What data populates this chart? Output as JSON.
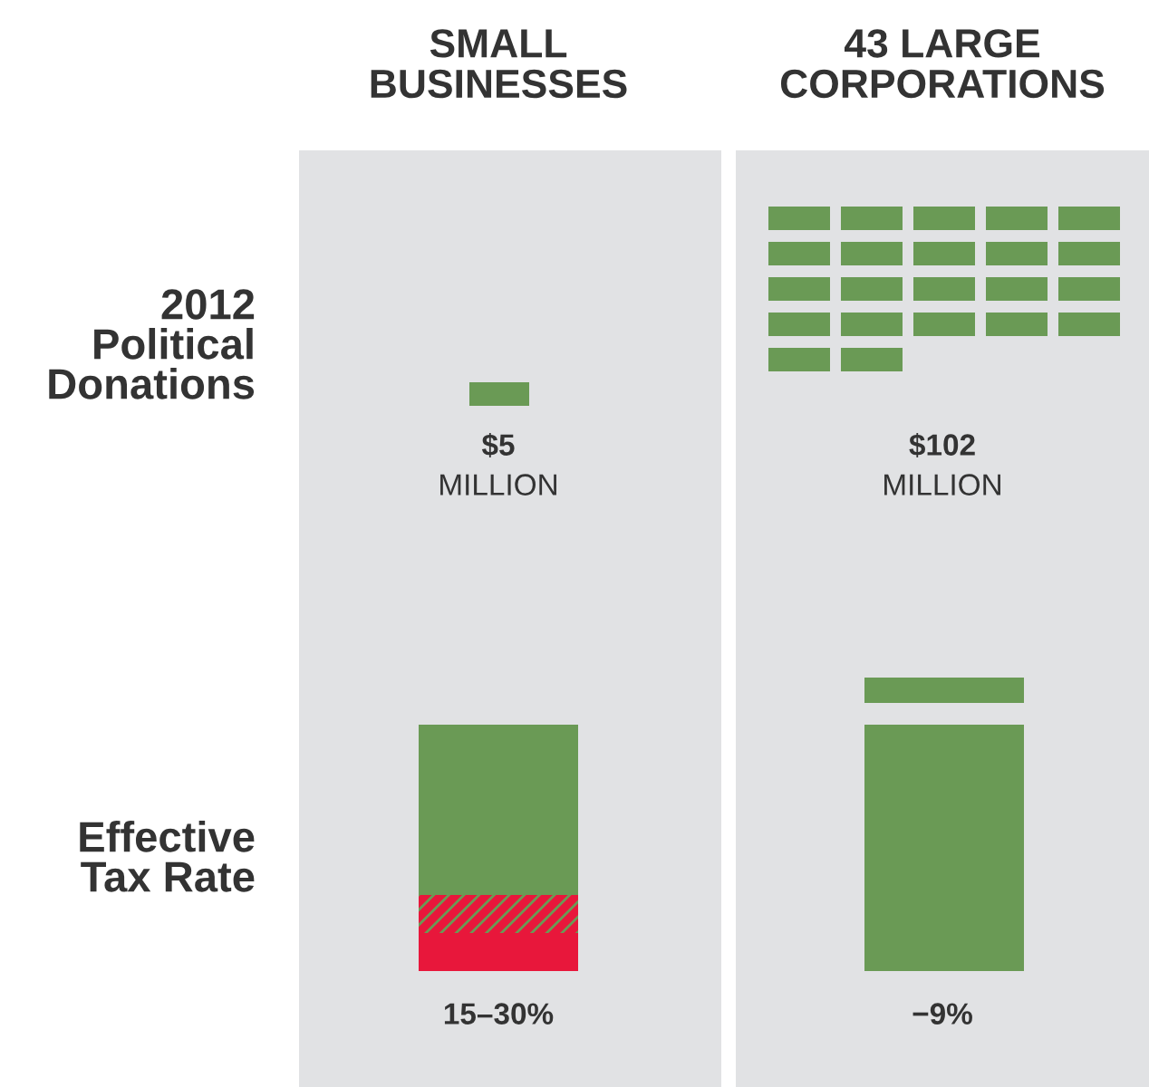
{
  "chart_data": [
    {
      "type": "other",
      "title": "2012\nPolitical\nDonations",
      "categories": [
        "SMALL\nBUSINESSES",
        "43 LARGE\nCORPORATIONS"
      ],
      "values": [
        5,
        102
      ],
      "value_labels": [
        "$5\nMILLION",
        "$102\nMILLION"
      ]
    },
    {
      "type": "other",
      "title": "Effective\nTax Rate",
      "categories": [
        null,
        null
      ],
      "values": [
        15,
        -9
      ],
      "value_labels": [
        "15–30%",
        "−9%"
      ]
    }
  ]
}
